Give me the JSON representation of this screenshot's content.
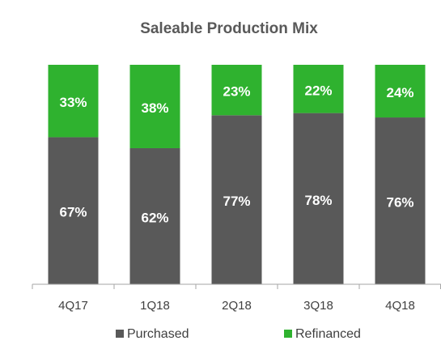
{
  "chart_data": {
    "type": "stacked_bar",
    "title": "Saleable Production Mix",
    "categories": [
      "4Q17",
      "1Q18",
      "2Q18",
      "3Q18",
      "4Q18"
    ],
    "series": [
      {
        "name": "Purchased",
        "color": "#595959",
        "values": [
          67,
          62,
          77,
          78,
          76
        ],
        "value_labels": [
          "67%",
          "62%",
          "77%",
          "78%",
          "76%"
        ]
      },
      {
        "name": "Refinanced",
        "color": "#2fb22f",
        "values": [
          33,
          38,
          23,
          22,
          24
        ],
        "value_labels": [
          "33%",
          "38%",
          "23%",
          "22%",
          "24%"
        ]
      }
    ],
    "ylim": [
      0,
      100
    ]
  }
}
